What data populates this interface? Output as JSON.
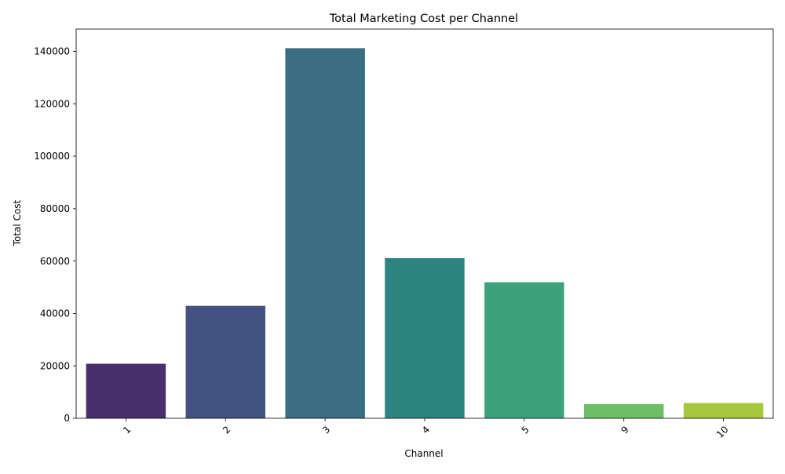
{
  "chart_data": {
    "type": "bar",
    "title": "Total Marketing Cost per Channel",
    "xlabel": "Channel",
    "ylabel": "Total Cost",
    "categories": [
      "1",
      "2",
      "3",
      "4",
      "5",
      "9",
      "10"
    ],
    "values": [
      20800,
      42900,
      141200,
      61100,
      51900,
      5400,
      5800
    ],
    "colors": [
      "#482f6e",
      "#425382",
      "#3b6e82",
      "#2e8480",
      "#3da27c",
      "#6cbf66",
      "#a6c83e"
    ],
    "ylim": [
      0,
      148500
    ],
    "yticks": [
      0,
      20000,
      40000,
      60000,
      80000,
      100000,
      120000,
      140000
    ],
    "ytick_labels": [
      "0",
      "20000",
      "40000",
      "60000",
      "80000",
      "100000",
      "120000",
      "140000"
    ],
    "grid": false,
    "legend": "none",
    "xtick_rotation": 45
  }
}
